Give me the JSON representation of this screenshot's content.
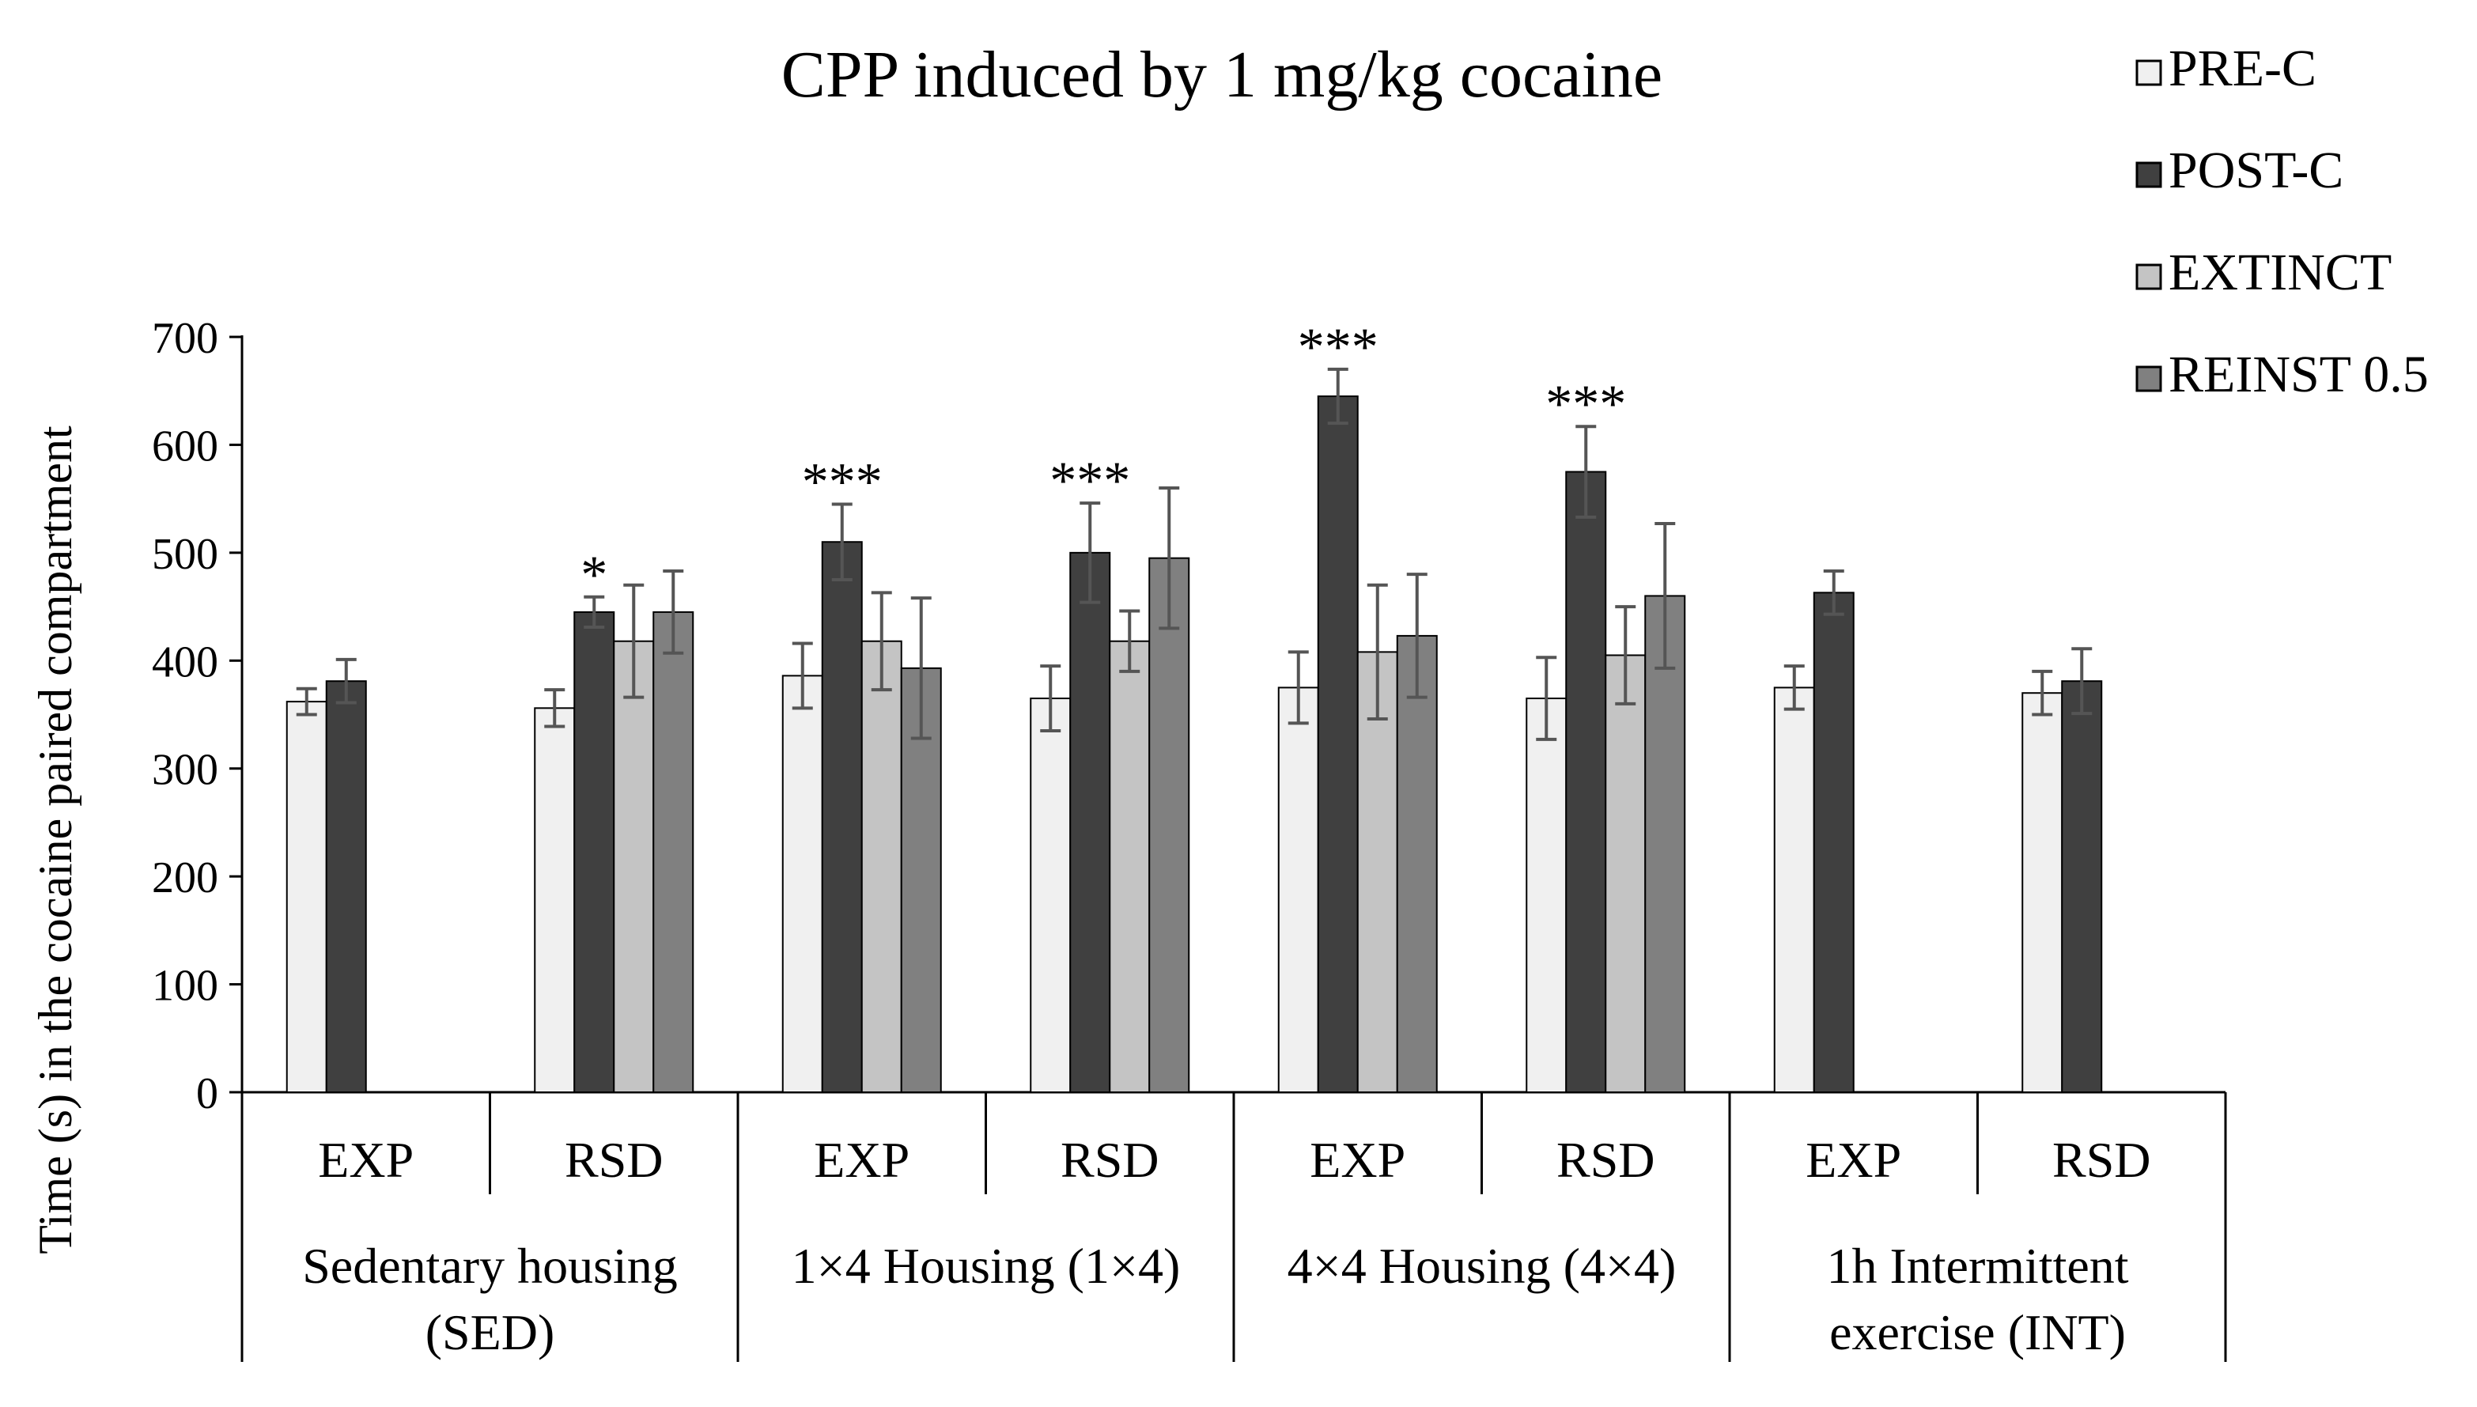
{
  "chart_data": {
    "type": "bar",
    "title": "CPP induced by 1 mg/kg cocaine",
    "ylabel": "Time (s) in the cocaine paired compartment",
    "xlabel": "",
    "ylim": [
      0,
      700
    ],
    "yticks": [
      0,
      100,
      200,
      300,
      400,
      500,
      600,
      700
    ],
    "grid": false,
    "legend_position": "top-right",
    "categories": [
      "EXP",
      "RSD",
      "EXP",
      "RSD",
      "EXP",
      "RSD",
      "EXP",
      "RSD"
    ],
    "groups": [
      {
        "label": "Sedentary housing (SED)",
        "lines": [
          "Sedentary housing",
          "(SED)"
        ]
      },
      {
        "label": "1×4 Housing (1×4)",
        "lines": [
          "1×4 Housing (1×4)"
        ]
      },
      {
        "label": "4×4 Housing (4×4)",
        "lines": [
          "4×4 Housing (4×4)"
        ]
      },
      {
        "label": "1h Intermittent exercise (INT)",
        "lines": [
          "1h Intermittent",
          "exercise (INT)"
        ]
      }
    ],
    "series": [
      {
        "name": "PRE-C",
        "color": "#f0f0f0",
        "values": [
          362,
          356,
          386,
          365,
          375,
          365,
          375,
          370
        ],
        "errors": [
          12,
          17,
          30,
          30,
          33,
          38,
          20,
          20
        ]
      },
      {
        "name": "POST-C",
        "color": "#404040",
        "values": [
          381,
          445,
          510,
          500,
          645,
          575,
          463,
          381
        ],
        "errors": [
          20,
          14,
          35,
          46,
          25,
          42,
          20,
          30
        ]
      },
      {
        "name": "EXTINCT",
        "color": "#c4c4c4",
        "values": [
          null,
          418,
          418,
          418,
          408,
          405,
          null,
          null
        ],
        "errors": [
          null,
          52,
          45,
          28,
          62,
          45,
          null,
          null
        ]
      },
      {
        "name": "REINST 0.5",
        "color": "#808080",
        "values": [
          null,
          445,
          393,
          495,
          423,
          460,
          null,
          null
        ],
        "errors": [
          null,
          38,
          65,
          65,
          57,
          67,
          null,
          null
        ]
      }
    ],
    "annotations": [
      {
        "category_index": 1,
        "series": "POST-C",
        "text": "*"
      },
      {
        "category_index": 2,
        "series": "POST-C",
        "text": "***"
      },
      {
        "category_index": 3,
        "series": "POST-C",
        "text": "***"
      },
      {
        "category_index": 4,
        "series": "POST-C",
        "text": "***"
      },
      {
        "category_index": 5,
        "series": "POST-C",
        "text": "***"
      }
    ]
  }
}
